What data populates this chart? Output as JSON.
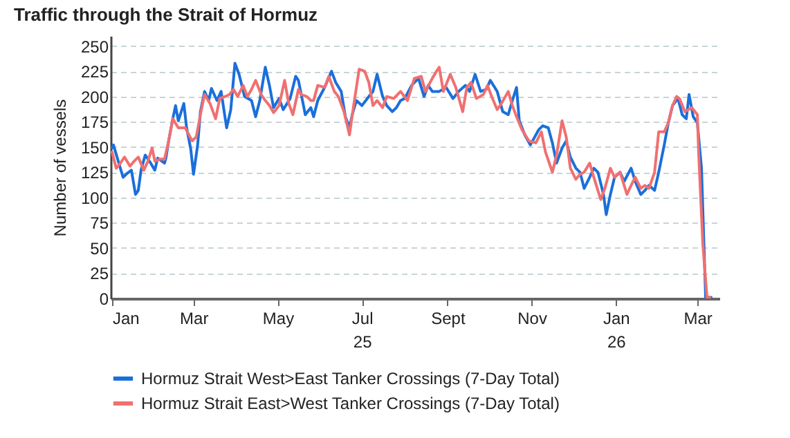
{
  "chart_data": {
    "type": "line",
    "title": "Traffic through the Strait of Hormuz",
    "ylabel": "Number of vessels",
    "xlim": [
      "2024-12-31",
      "2026-03-17"
    ],
    "xticks": [
      {
        "value": "2025-01-01",
        "label": "Jan"
      },
      {
        "value": "2025-03-01",
        "label": "Mar"
      },
      {
        "value": "2025-05-01",
        "label": "May"
      },
      {
        "value": "2025-07-01",
        "label": "Jul\n25"
      },
      {
        "value": "2025-09-01",
        "label": "Sept"
      },
      {
        "value": "2025-11-01",
        "label": "Nov"
      },
      {
        "value": "2026-01-01",
        "label": "Jan\n26"
      },
      {
        "value": "2026-03-01",
        "label": "Mar"
      }
    ],
    "ylim": [
      0,
      260
    ],
    "yticks": [
      0,
      25,
      50,
      75,
      100,
      125,
      150,
      175,
      200,
      225,
      250
    ],
    "grid": "y",
    "legend": "bottom",
    "line_style": "solid",
    "marker": "none",
    "series": [
      {
        "name": "Hormuz Strait West>East Tanker Crossings (7-Day Total)",
        "color": "#1a6fdb",
        "x": [
          "2025-01-01",
          "2025-01-02",
          "2025-01-07",
          "2025-01-09",
          "2025-01-12",
          "2025-01-15",
          "2025-01-18",
          "2025-01-20",
          "2025-01-22",
          "2025-01-25",
          "2025-01-29",
          "2025-02-01",
          "2025-02-03",
          "2025-02-08",
          "2025-02-09",
          "2025-02-11",
          "2025-02-14",
          "2025-02-16",
          "2025-02-18",
          "2025-02-22",
          "2025-02-24",
          "2025-02-27",
          "2025-03-01",
          "2025-03-04",
          "2025-03-06",
          "2025-03-09",
          "2025-03-12",
          "2025-03-14",
          "2025-03-18",
          "2025-03-21",
          "2025-03-25",
          "2025-03-28",
          "2025-03-31",
          "2025-04-03",
          "2025-04-07",
          "2025-04-12",
          "2025-04-15",
          "2025-04-18",
          "2025-04-22",
          "2025-04-25",
          "2025-04-28",
          "2025-05-02",
          "2025-05-05",
          "2025-05-10",
          "2025-05-14",
          "2025-05-16",
          "2025-05-21",
          "2025-05-25",
          "2025-05-27",
          "2025-05-30",
          "2025-06-04",
          "2025-06-09",
          "2025-06-12",
          "2025-06-16",
          "2025-06-19",
          "2025-06-22",
          "2025-06-24",
          "2025-06-27",
          "2025-07-01",
          "2025-07-06",
          "2025-07-09",
          "2025-07-12",
          "2025-07-16",
          "2025-07-19",
          "2025-07-23",
          "2025-07-26",
          "2025-07-29",
          "2025-08-01",
          "2025-08-06",
          "2025-08-11",
          "2025-08-15",
          "2025-08-18",
          "2025-08-21",
          "2025-08-26",
          "2025-08-31",
          "2025-09-05",
          "2025-09-09",
          "2025-09-14",
          "2025-09-17",
          "2025-09-21",
          "2025-09-25",
          "2025-09-29",
          "2025-10-02",
          "2025-10-07",
          "2025-10-11",
          "2025-10-15",
          "2025-10-18",
          "2025-10-21",
          "2025-10-23",
          "2025-10-27",
          "2025-10-31",
          "2025-11-06",
          "2025-11-09",
          "2025-11-13",
          "2025-11-16",
          "2025-11-19",
          "2025-11-23",
          "2025-11-26",
          "2025-11-29",
          "2025-12-03",
          "2025-12-06",
          "2025-12-09",
          "2025-12-13",
          "2025-12-16",
          "2025-12-19",
          "2025-12-23",
          "2025-12-25",
          "2025-12-28",
          "2025-12-31",
          "2026-01-04",
          "2026-01-07",
          "2026-01-12",
          "2026-01-15",
          "2026-01-19",
          "2026-01-22",
          "2026-01-25",
          "2026-01-29",
          "2026-02-01",
          "2026-02-05",
          "2026-02-08",
          "2026-02-11",
          "2026-02-15",
          "2026-02-18",
          "2026-02-21",
          "2026-02-23",
          "2026-02-26",
          "2026-03-01",
          "2026-03-04",
          "2026-03-07",
          "2026-03-11"
        ],
        "values": [
          149,
          152,
          129,
          120,
          124,
          127,
          103,
          107,
          127,
          142,
          134,
          127,
          139,
          134,
          139,
          156,
          178,
          191,
          176,
          193,
          169,
          148,
          123,
          152,
          185,
          205,
          196,
          208,
          196,
          205,
          169,
          187,
          233,
          222,
          200,
          196,
          180,
          196,
          229,
          211,
          189,
          198,
          187,
          198,
          220,
          216,
          182,
          189,
          180,
          196,
          209,
          225,
          214,
          205,
          180,
          169,
          182,
          196,
          191,
          200,
          205,
          222,
          200,
          191,
          185,
          189,
          196,
          198,
          211,
          218,
          200,
          211,
          205,
          205,
          209,
          198,
          205,
          211,
          205,
          222,
          205,
          207,
          216,
          205,
          185,
          182,
          196,
          209,
          176,
          162,
          152,
          167,
          171,
          169,
          154,
          134,
          149,
          156,
          140,
          129,
          125,
          109,
          120,
          129,
          125,
          103,
          83,
          103,
          120,
          125,
          116,
          129,
          116,
          103,
          107,
          112,
          107,
          125,
          152,
          174,
          191,
          198,
          182,
          178,
          202,
          180,
          174,
          129,
          1,
          1
        ]
      },
      {
        "name": "Hormuz Strait East>West Tanker Crossings (7-Day Total)",
        "color": "#f07070",
        "x": [
          "2025-01-01",
          "2025-01-04",
          "2025-01-07",
          "2025-01-10",
          "2025-01-14",
          "2025-01-17",
          "2025-01-20",
          "2025-01-24",
          "2025-01-27",
          "2025-01-30",
          "2025-02-01",
          "2025-02-05",
          "2025-02-08",
          "2025-02-11",
          "2025-02-14",
          "2025-02-18",
          "2025-02-23",
          "2025-02-28",
          "2025-03-03",
          "2025-03-06",
          "2025-03-09",
          "2025-03-13",
          "2025-03-17",
          "2025-03-20",
          "2025-03-24",
          "2025-03-27",
          "2025-03-30",
          "2025-04-02",
          "2025-04-06",
          "2025-04-09",
          "2025-04-12",
          "2025-04-15",
          "2025-04-19",
          "2025-04-22",
          "2025-04-25",
          "2025-04-28",
          "2025-05-02",
          "2025-05-06",
          "2025-05-09",
          "2025-05-12",
          "2025-05-16",
          "2025-05-18",
          "2025-05-22",
          "2025-05-25",
          "2025-05-27",
          "2025-05-30",
          "2025-06-04",
          "2025-06-07",
          "2025-06-11",
          "2025-06-14",
          "2025-06-18",
          "2025-06-22",
          "2025-06-25",
          "2025-06-29",
          "2025-07-03",
          "2025-07-06",
          "2025-07-09",
          "2025-07-12",
          "2025-07-16",
          "2025-07-19",
          "2025-07-24",
          "2025-07-29",
          "2025-08-03",
          "2025-08-08",
          "2025-08-13",
          "2025-08-16",
          "2025-08-21",
          "2025-08-24",
          "2025-08-26",
          "2025-08-29",
          "2025-09-03",
          "2025-09-07",
          "2025-09-12",
          "2025-09-15",
          "2025-09-18",
          "2025-09-22",
          "2025-09-27",
          "2025-09-30",
          "2025-10-03",
          "2025-10-07",
          "2025-10-10",
          "2025-10-15",
          "2025-10-18",
          "2025-10-21",
          "2025-10-25",
          "2025-10-30",
          "2025-11-04",
          "2025-11-08",
          "2025-11-11",
          "2025-11-16",
          "2025-11-19",
          "2025-11-23",
          "2025-11-26",
          "2025-11-29",
          "2025-12-03",
          "2025-12-06",
          "2025-12-09",
          "2025-12-13",
          "2025-12-16",
          "2025-12-21",
          "2025-12-24",
          "2025-12-28",
          "2025-12-31",
          "2026-01-04",
          "2026-01-09",
          "2026-01-12",
          "2026-01-15",
          "2026-01-19",
          "2026-01-22",
          "2026-01-25",
          "2026-01-29",
          "2026-02-01",
          "2026-02-05",
          "2026-02-08",
          "2026-02-11",
          "2026-02-14",
          "2026-02-16",
          "2026-02-20",
          "2026-02-25",
          "2026-03-01",
          "2026-03-02",
          "2026-03-05",
          "2026-03-08",
          "2026-03-10"
        ],
        "values": [
          145,
          129,
          134,
          140,
          131,
          136,
          140,
          127,
          136,
          149,
          136,
          138,
          138,
          156,
          178,
          169,
          169,
          156,
          160,
          182,
          202,
          193,
          178,
          198,
          200,
          202,
          207,
          200,
          211,
          200,
          207,
          216,
          202,
          196,
          191,
          184,
          191,
          216,
          193,
          182,
          207,
          202,
          200,
          196,
          196,
          211,
          209,
          220,
          205,
          200,
          185,
          162,
          191,
          227,
          225,
          214,
          191,
          196,
          189,
          200,
          198,
          205,
          196,
          218,
          220,
          205,
          218,
          225,
          229,
          205,
          222,
          209,
          185,
          209,
          214,
          198,
          202,
          211,
          200,
          187,
          193,
          205,
          191,
          180,
          167,
          156,
          154,
          165,
          145,
          125,
          142,
          176,
          160,
          129,
          118,
          123,
          125,
          134,
          120,
          98,
          109,
          129,
          120,
          125,
          103,
          112,
          120,
          109,
          112,
          109,
          125,
          165,
          165,
          174,
          191,
          200,
          198,
          185,
          189,
          182,
          142,
          53,
          1,
          1
        ]
      }
    ]
  }
}
